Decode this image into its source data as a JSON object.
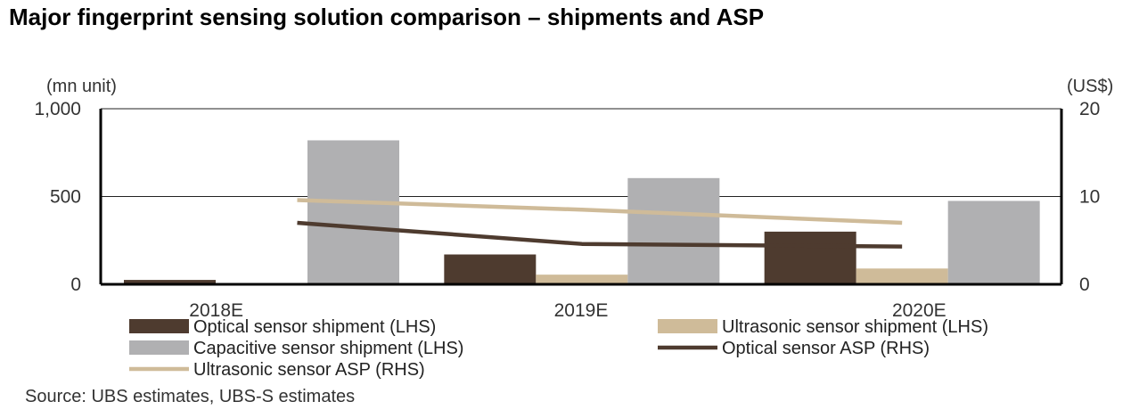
{
  "title": "Major fingerprint sensing solution comparison – shipments and ASP",
  "source": "Source: UBS estimates, UBS-S estimates",
  "chart_data": {
    "type": "bar",
    "categories": [
      "2018E",
      "2019E",
      "2020E"
    ],
    "y_left": {
      "label": "(mn unit)",
      "ylim": [
        0,
        1000
      ],
      "ticks": [
        0,
        500,
        1000
      ],
      "tick_labels": [
        "0",
        "500",
        "1,000"
      ]
    },
    "y_right": {
      "label": "(US$)",
      "ylim": [
        0,
        20
      ],
      "ticks": [
        0,
        10,
        20
      ],
      "tick_labels": [
        "0",
        "10",
        "20"
      ]
    },
    "grid": true,
    "legend_position": "bottom",
    "series": [
      {
        "name": "Optical sensor shipment (LHS)",
        "kind": "bar",
        "axis": "left",
        "color": "#4e3b2f",
        "values": [
          25,
          170,
          300
        ]
      },
      {
        "name": "Ultrasonic sensor shipment (LHS)",
        "kind": "bar",
        "axis": "left",
        "color": "#cfbb99",
        "values": [
          0,
          55,
          90
        ]
      },
      {
        "name": "Capacitive sensor shipment (LHS)",
        "kind": "bar",
        "axis": "left",
        "color": "#b0b0b2",
        "values": [
          820,
          605,
          475
        ]
      },
      {
        "name": "Optical sensor ASP (RHS)",
        "kind": "line",
        "axis": "right",
        "color": "#4e3b2f",
        "values": [
          7.0,
          4.6,
          4.3
        ]
      },
      {
        "name": "Ultrasonic sensor ASP (RHS)",
        "kind": "line",
        "axis": "right",
        "color": "#cfbb99",
        "values": [
          9.6,
          8.5,
          7.0
        ]
      }
    ]
  }
}
